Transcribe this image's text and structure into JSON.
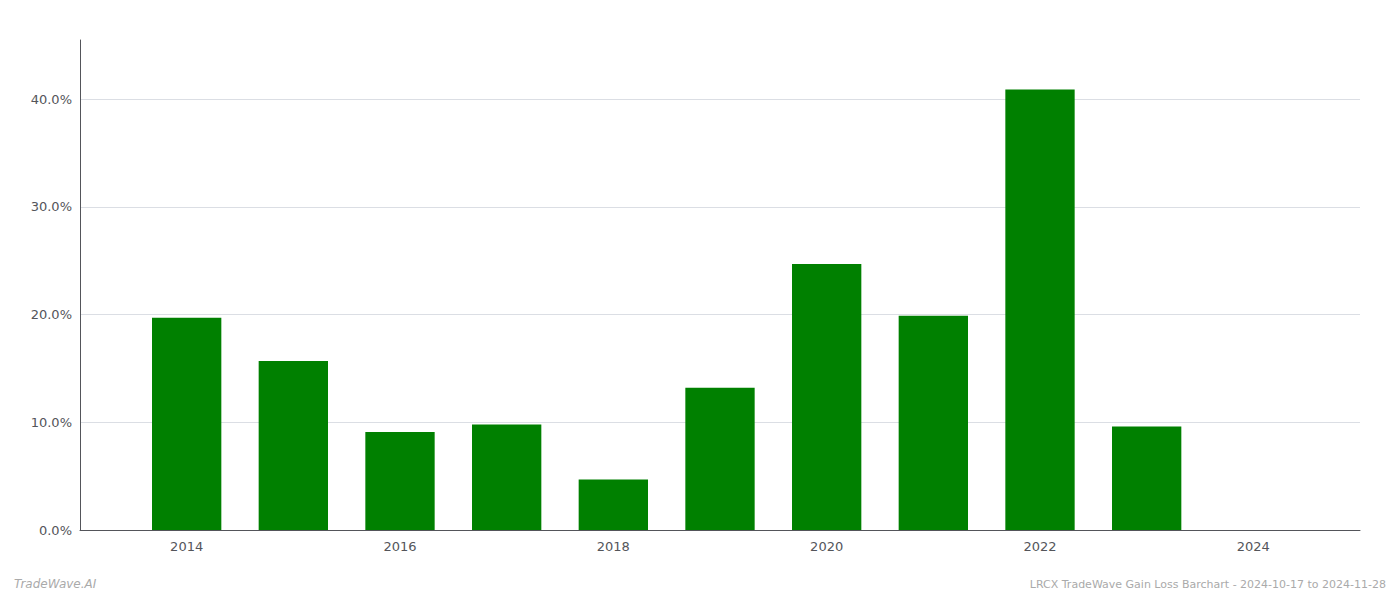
{
  "chart_data": {
    "type": "bar",
    "x": [
      2014,
      2015,
      2016,
      2017,
      2018,
      2019,
      2020,
      2021,
      2022,
      2023,
      2024
    ],
    "values": [
      0.197,
      0.157,
      0.091,
      0.098,
      0.047,
      0.132,
      0.247,
      0.199,
      0.409,
      0.096,
      0.0
    ],
    "color": "#008000",
    "xlim": [
      2013.0,
      2025.0
    ],
    "xticks": [
      2014,
      2016,
      2018,
      2020,
      2022,
      2024
    ],
    "ylim": [
      0,
      0.455
    ],
    "yticks": [
      {
        "value": 0.0,
        "label": "0.0%"
      },
      {
        "value": 0.1,
        "label": "10.0%"
      },
      {
        "value": 0.2,
        "label": "20.0%"
      },
      {
        "value": 0.3,
        "label": "30.0%"
      },
      {
        "value": 0.4,
        "label": "40.0%"
      }
    ],
    "grid": true,
    "annotations": [
      "TradeWave.AI",
      "LRCX TradeWave Gain Loss Barchart - 2024-10-17 to 2024-11-28"
    ]
  }
}
